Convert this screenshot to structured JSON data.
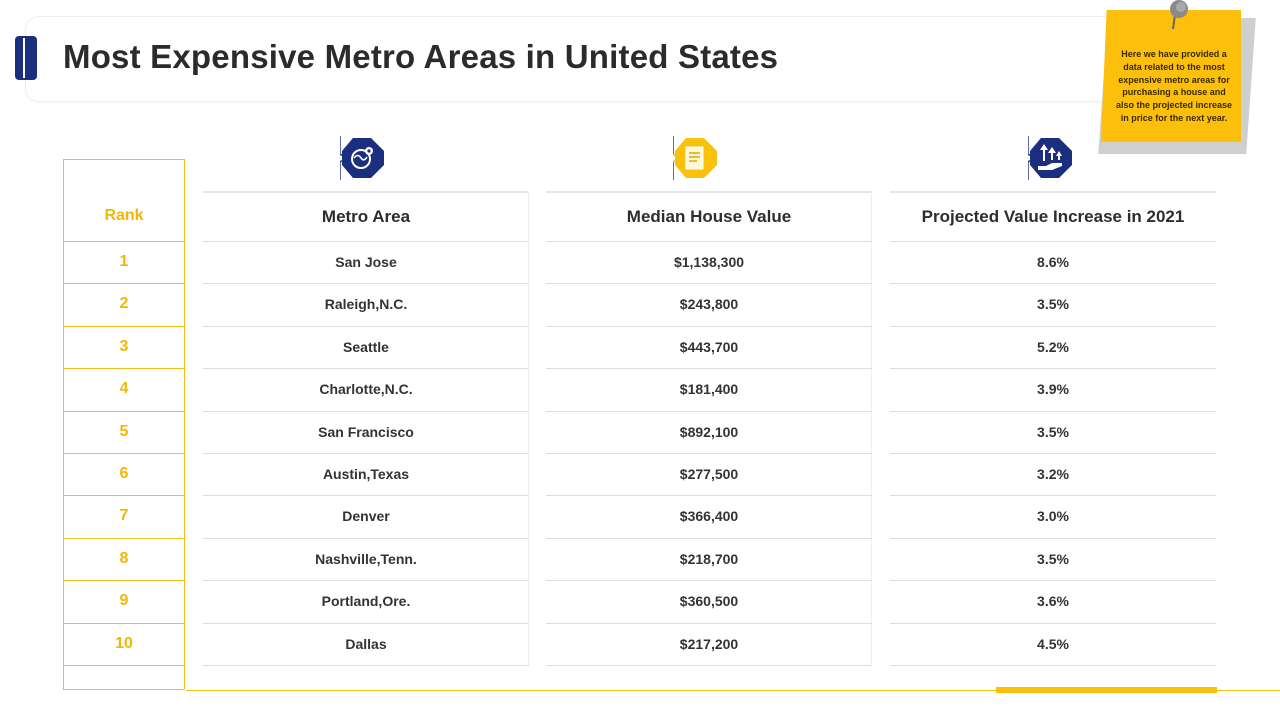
{
  "title": "Most Expensive Metro Areas in United States",
  "note": "Here we have provided a data related to the most expensive metro areas for purchasing a house and also the projected increase in price for the next year.",
  "colors": {
    "navy": "#1b2f7e",
    "yellow": "#fbbf0c",
    "rank": "#f2b705"
  },
  "icons": [
    "globe-pin-icon",
    "document-icon",
    "hand-growth-icon"
  ],
  "headers": {
    "rank": "Rank",
    "metro": "Metro Area",
    "median": "Median House Value",
    "projected": "Projected Value Increase in 2021"
  },
  "rows": [
    {
      "rank": "1",
      "metro": "San Jose",
      "median": "$1,138,300",
      "projected": "8.6%"
    },
    {
      "rank": "2",
      "metro": "Raleigh,N.C.",
      "median": "$243,800",
      "projected": "3.5%"
    },
    {
      "rank": "3",
      "metro": "Seattle",
      "median": "$443,700",
      "projected": "5.2%"
    },
    {
      "rank": "4",
      "metro": "Charlotte,N.C.",
      "median": "$181,400",
      "projected": "3.9%"
    },
    {
      "rank": "5",
      "metro": "San Francisco",
      "median": "$892,100",
      "projected": "3.5%"
    },
    {
      "rank": "6",
      "metro": "Austin,Texas",
      "median": "$277,500",
      "projected": "3.2%"
    },
    {
      "rank": "7",
      "metro": "Denver",
      "median": "$366,400",
      "projected": "3.0%"
    },
    {
      "rank": "8",
      "metro": "Nashville,Tenn.",
      "median": "$218,700",
      "projected": "3.5%"
    },
    {
      "rank": "9",
      "metro": "Portland,Ore.",
      "median": "$360,500",
      "projected": "3.6%"
    },
    {
      "rank": "10",
      "metro": "Dallas",
      "median": "$217,200",
      "projected": "4.5%"
    }
  ]
}
